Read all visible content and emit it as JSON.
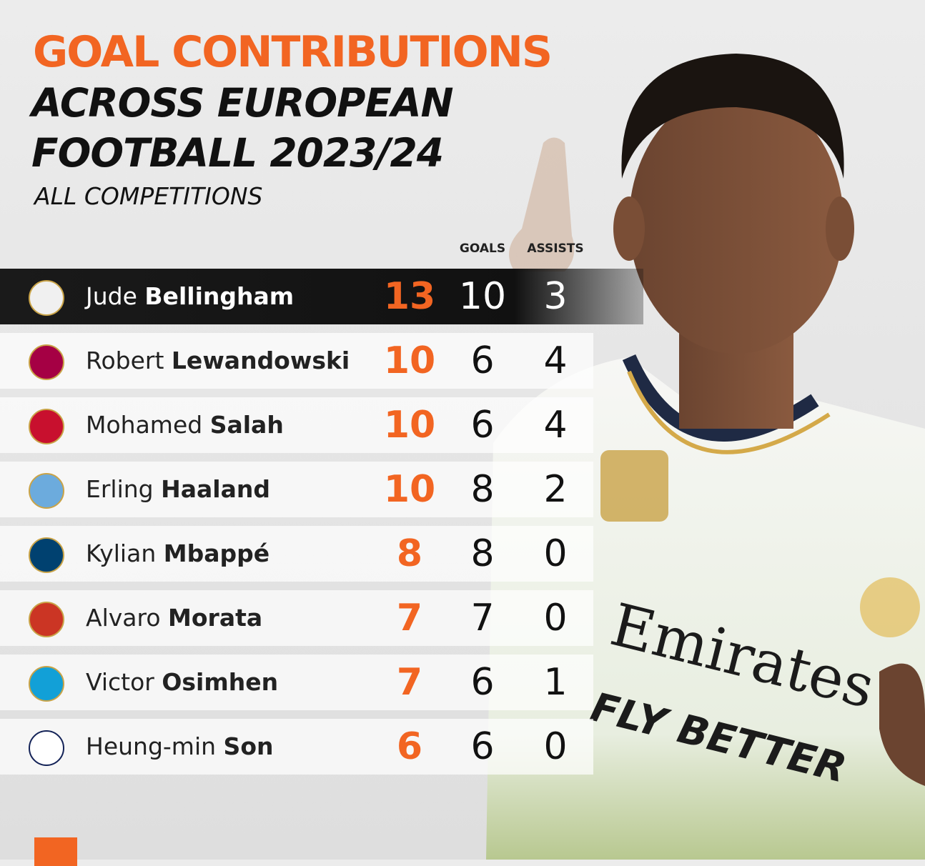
{
  "header": {
    "title": "GOAL CONTRIBUTIONS",
    "lines": [
      "ACROSS EUROPEAN",
      "FOOTBALL 2023/24"
    ],
    "subtitle": "ALL COMPETITIONS"
  },
  "table": {
    "columns": [
      "GOALS",
      "ASSISTS"
    ],
    "rows": [
      {
        "first": "Jude",
        "last": "Bellingham",
        "total": 13,
        "goals": 10,
        "assists": 3
      },
      {
        "first": "Robert",
        "last": "Lewandowski",
        "total": 10,
        "goals": 6,
        "assists": 4
      },
      {
        "first": "Mohamed",
        "last": "Salah",
        "total": 10,
        "goals": 6,
        "assists": 4
      },
      {
        "first": "Erling",
        "last": "Haaland",
        "total": 10,
        "goals": 8,
        "assists": 2
      },
      {
        "first": "Kylian",
        "last": "Mbappé",
        "total": 8,
        "goals": 8,
        "assists": 0
      },
      {
        "first": "Alvaro",
        "last": "Morata",
        "total": 7,
        "goals": 7,
        "assists": 0
      },
      {
        "first": "Victor",
        "last": "Osimhen",
        "total": 7,
        "goals": 6,
        "assists": 1
      },
      {
        "first": "Heung-min",
        "last": "Son",
        "total": 6,
        "goals": 6,
        "assists": 0
      }
    ]
  },
  "jersey": {
    "sponsor": "Emirates",
    "tagline": "FLY BETTER"
  }
}
